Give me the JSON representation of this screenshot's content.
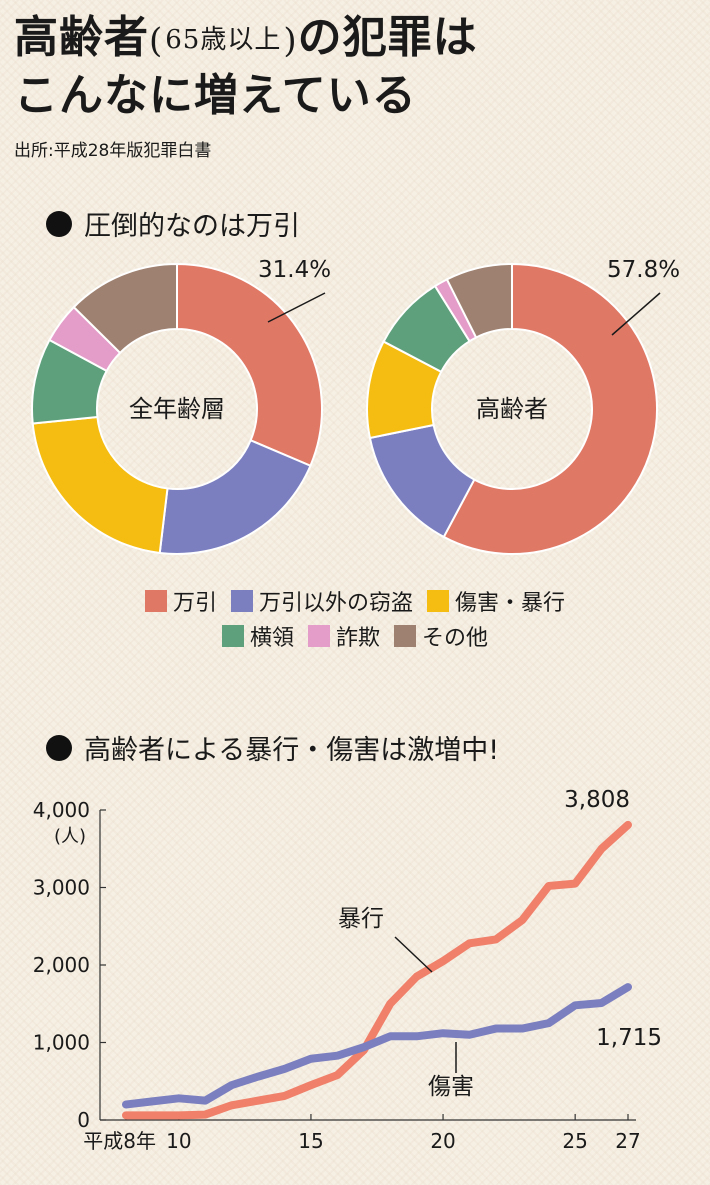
{
  "title": {
    "line1_a": "高齢者",
    "line1_paren_open": "(",
    "line1_paren_text": "65歳以上",
    "line1_paren_close": ")",
    "line1_b": "の犯罪は",
    "line2": "こんなに増えている"
  },
  "source": "出所:平成28年版犯罪白書",
  "section1_title": "圧倒的なのは万引",
  "section2_title": "高齢者による暴行・傷害は激増中!",
  "colors": {
    "万引": "#e07866",
    "万引以外の窃盗": "#7b7fc0",
    "傷害・暴行": "#f5bd12",
    "横領": "#5fa07c",
    "詐欺": "#e49cc8",
    "その他": "#9e8170"
  },
  "legend": {
    "row1": [
      {
        "label": "万引",
        "color": "#e07866"
      },
      {
        "label": "万引以外の窃盗",
        "color": "#7b7fc0"
      },
      {
        "label": "傷害・暴行",
        "color": "#f5bd12"
      }
    ],
    "row2": [
      {
        "label": "横領",
        "color": "#5fa07c"
      },
      {
        "label": "詐欺",
        "color": "#e49cc8"
      },
      {
        "label": "その他",
        "color": "#9e8170"
      }
    ]
  },
  "chart_data": [
    {
      "type": "pie",
      "center_label": "全年齢層",
      "categories": [
        "万引",
        "万引以外の窃盗",
        "傷害・暴行",
        "横領",
        "詐欺",
        "その他"
      ],
      "values": [
        31.4,
        20.5,
        21.5,
        9.5,
        4.5,
        12.6
      ],
      "callout": "31.4%"
    },
    {
      "type": "pie",
      "center_label": "高齢者",
      "categories": [
        "万引",
        "万引以外の窃盗",
        "傷害・暴行",
        "横領",
        "詐欺",
        "その他"
      ],
      "values": [
        57.8,
        14.0,
        10.9,
        8.4,
        1.5,
        7.4
      ],
      "callout": "57.8%"
    },
    {
      "type": "line",
      "x": [
        8,
        9,
        10,
        11,
        12,
        13,
        14,
        15,
        16,
        17,
        18,
        19,
        20,
        21,
        22,
        23,
        24,
        25,
        26,
        27
      ],
      "xticks": [
        {
          "x": 8,
          "label": "平成8年"
        },
        {
          "x": 10,
          "label": "10"
        },
        {
          "x": 15,
          "label": "15"
        },
        {
          "x": 20,
          "label": "20"
        },
        {
          "x": 25,
          "label": "25"
        },
        {
          "x": 27,
          "label": "27"
        }
      ],
      "ylim": [
        0,
        4000
      ],
      "yticks": [
        {
          "v": 0,
          "label": "0"
        },
        {
          "v": 1000,
          "label": "1,000"
        },
        {
          "v": 2000,
          "label": "2,000"
        },
        {
          "v": 3000,
          "label": "3,000"
        },
        {
          "v": 4000,
          "label": "4,000"
        }
      ],
      "yunit": "(人)",
      "series": [
        {
          "name": "暴行",
          "color": "#f0806a",
          "values": [
            60,
            60,
            60,
            70,
            190,
            250,
            310,
            450,
            580,
            900,
            1500,
            1850,
            2050,
            2280,
            2330,
            2580,
            3020,
            3050,
            3500,
            3808
          ],
          "end_label": "3,808"
        },
        {
          "name": "傷害",
          "color": "#7b7fc0",
          "values": [
            200,
            240,
            280,
            250,
            450,
            560,
            660,
            790,
            830,
            940,
            1080,
            1080,
            1120,
            1100,
            1180,
            1180,
            1250,
            1480,
            1510,
            1715
          ],
          "end_label": "1,715"
        }
      ]
    }
  ]
}
